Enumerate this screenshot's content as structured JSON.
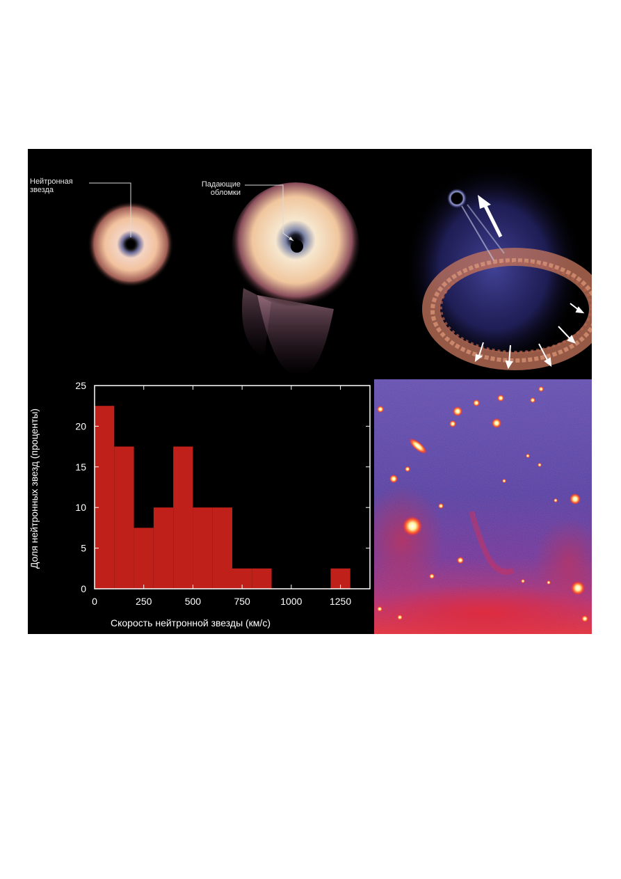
{
  "illustration": {
    "label_neutron_star_line1": "Нейтронная",
    "label_neutron_star_line2": "звезда",
    "label_debris_line1": "Падающие",
    "label_debris_line2": "обломки"
  },
  "colors": {
    "bar": "#c0201a",
    "axis": "#ffffff",
    "background": "#000000"
  },
  "chart_data": {
    "type": "bar",
    "xlabel": "Скорость нейтронной звезды (км/с)",
    "ylabel": "Доля нейтронных звезд (проценты)",
    "xlim": [
      0,
      1400
    ],
    "ylim": [
      0,
      25
    ],
    "xticks": [
      0,
      250,
      500,
      750,
      1000,
      1250
    ],
    "yticks": [
      0,
      5,
      10,
      15,
      20,
      25
    ],
    "bin_width": 100,
    "bins": [
      {
        "x0": 0,
        "x1": 100,
        "value": 22.5
      },
      {
        "x0": 100,
        "x1": 200,
        "value": 17.5
      },
      {
        "x0": 200,
        "x1": 300,
        "value": 7.5
      },
      {
        "x0": 300,
        "x1": 400,
        "value": 10
      },
      {
        "x0": 400,
        "x1": 500,
        "value": 17.5
      },
      {
        "x0": 500,
        "x1": 600,
        "value": 10
      },
      {
        "x0": 600,
        "x1": 700,
        "value": 10
      },
      {
        "x0": 700,
        "x1": 800,
        "value": 2.5
      },
      {
        "x0": 800,
        "x1": 900,
        "value": 2.5
      },
      {
        "x0": 900,
        "x1": 1000,
        "value": 0
      },
      {
        "x0": 1000,
        "x1": 1100,
        "value": 0
      },
      {
        "x0": 1100,
        "x1": 1200,
        "value": 0
      },
      {
        "x0": 1200,
        "x1": 1300,
        "value": 2.5
      },
      {
        "x0": 1300,
        "x1": 1400,
        "value": 0
      }
    ]
  }
}
